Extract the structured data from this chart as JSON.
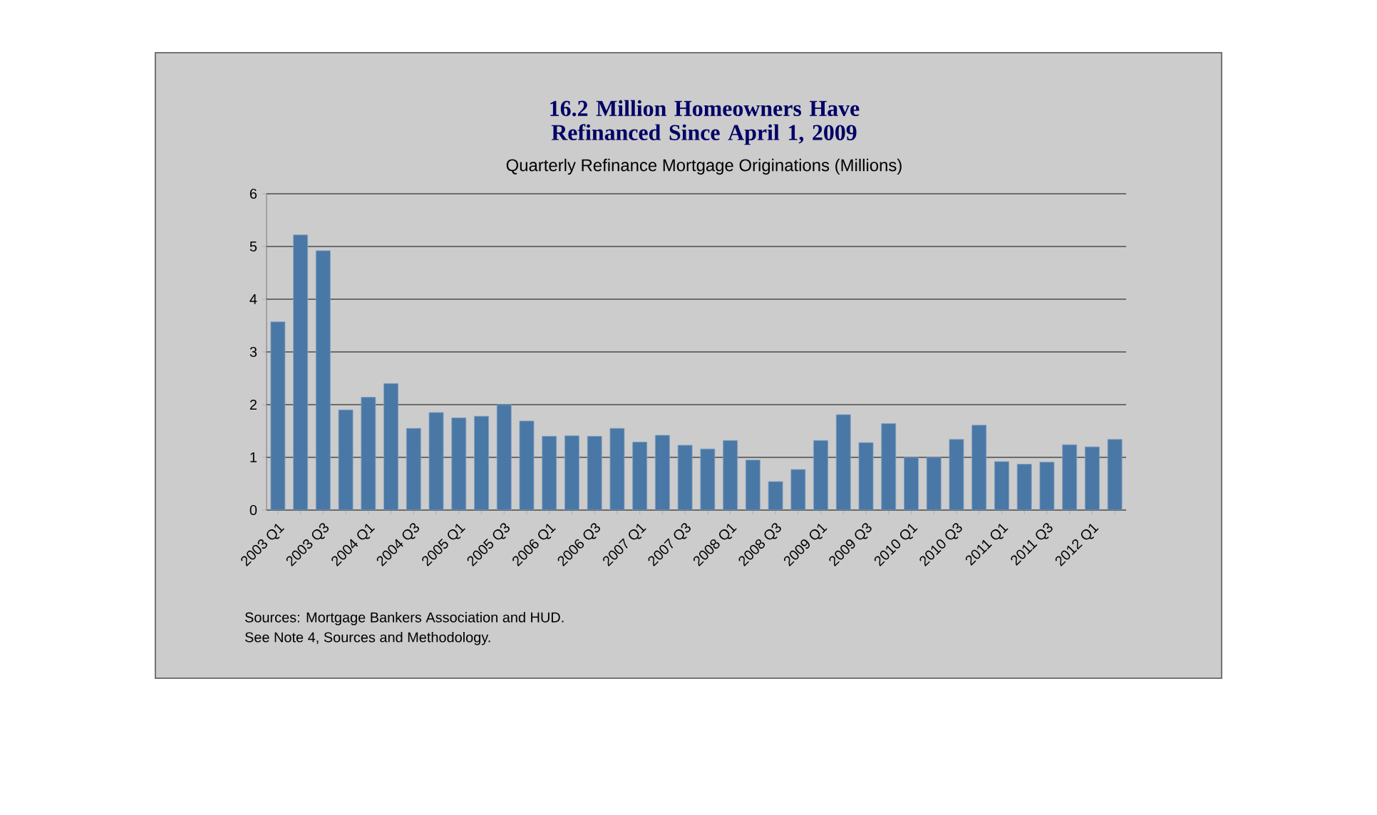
{
  "chart_data": {
    "type": "bar",
    "title": "16.2 Million Homeowners Have Refinanced Since April 1, 2009",
    "subtitle": "Quarterly Refinance Mortgage Originations (Millions)",
    "categories": [
      "2003 Q1",
      null,
      "2003 Q3",
      null,
      "2004 Q1",
      null,
      "2004 Q3",
      null,
      "2005 Q1",
      null,
      "2005 Q3",
      null,
      "2006 Q1",
      null,
      "2006 Q3",
      null,
      "2007 Q1",
      null,
      "2007 Q3",
      null,
      "2008 Q1",
      null,
      "2008 Q3",
      null,
      "2009 Q1",
      null,
      "2009 Q3",
      null,
      "2010 Q1",
      null,
      "2010 Q3",
      null,
      "2011 Q1",
      null,
      "2011 Q3",
      null,
      "2012 Q1",
      null
    ],
    "values": [
      3.57,
      5.22,
      4.92,
      1.9,
      2.14,
      2.4,
      1.55,
      1.85,
      1.75,
      1.78,
      2.0,
      1.69,
      1.4,
      1.41,
      1.4,
      1.55,
      1.29,
      1.42,
      1.23,
      1.16,
      1.32,
      0.95,
      0.54,
      0.77,
      1.32,
      1.81,
      1.28,
      1.64,
      1.0,
      1.0,
      1.34,
      1.61,
      0.92,
      0.87,
      0.91,
      1.24,
      1.2,
      1.34
    ],
    "color": "#4a78a6",
    "ylim": [
      0,
      6
    ],
    "yticks": [
      0,
      1,
      2,
      3,
      4,
      5,
      6
    ],
    "grid": "y",
    "annotations": [
      "Sources:  Mortgage Bankers Association and HUD.",
      "See Note 4, Sources and Methodology."
    ]
  }
}
